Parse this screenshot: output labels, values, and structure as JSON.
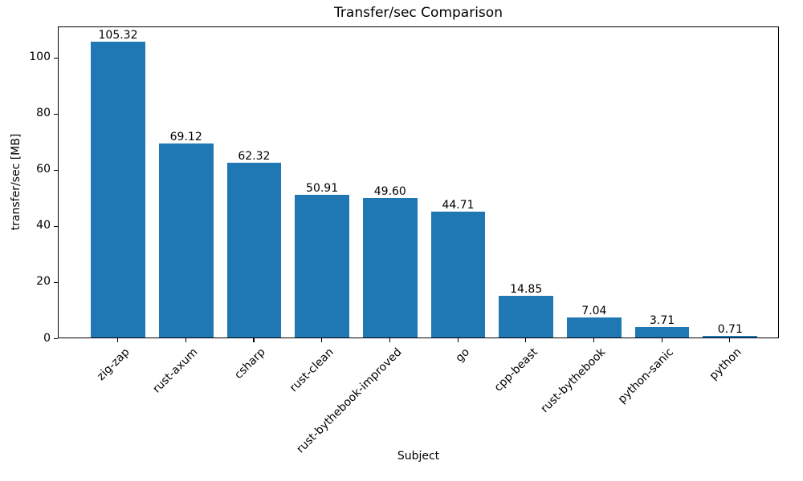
{
  "chart_data": {
    "type": "bar",
    "title": "Transfer/sec Comparison",
    "xlabel": "Subject",
    "ylabel": "transfer/sec [MB]",
    "categories": [
      "zig-zap",
      "rust-axum",
      "csharp",
      "rust-clean",
      "rust-bythebook-improved",
      "go",
      "cpp-beast",
      "rust-bythebook",
      "python-sanic",
      "python"
    ],
    "values": [
      105.32,
      69.12,
      62.32,
      50.91,
      49.6,
      44.71,
      14.85,
      7.04,
      3.71,
      0.71
    ],
    "value_labels": [
      "105.32",
      "69.12",
      "62.32",
      "50.91",
      "49.60",
      "44.71",
      "14.85",
      "7.04",
      "3.71",
      "0.71"
    ],
    "yticks": [
      0,
      20,
      40,
      60,
      80,
      100
    ],
    "ylim": [
      0,
      111
    ],
    "bar_color": "#1f77b4",
    "text_color": "#000000",
    "grid": false,
    "legend_position": "none",
    "x_tick_rotation_deg": 45
  }
}
